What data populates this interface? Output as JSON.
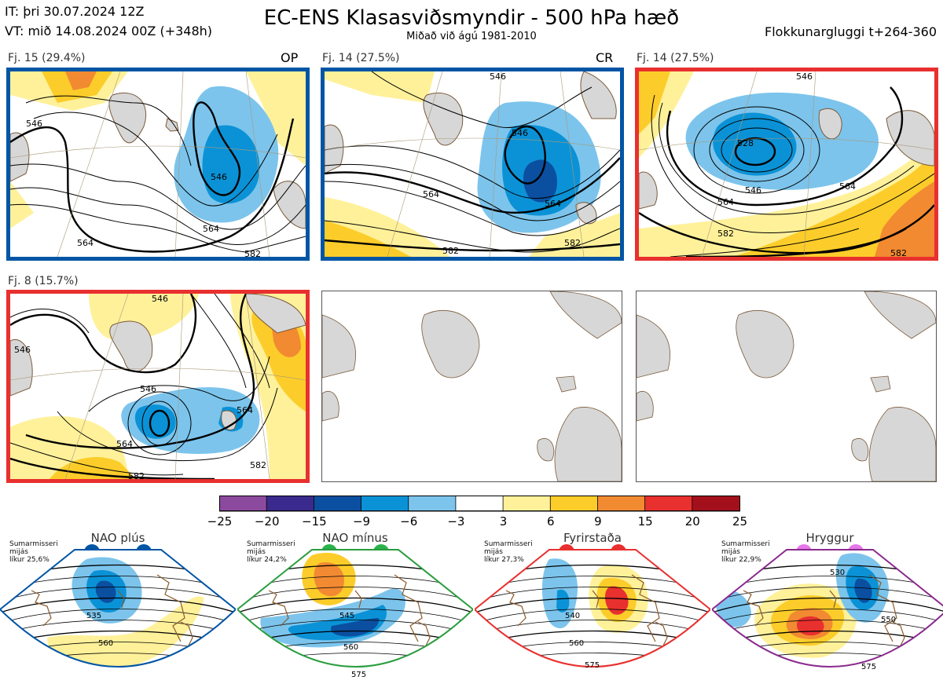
{
  "header": {
    "it": "IT: þri 30.07.2024 12Z",
    "vt": "VT: mið 14.08.2024 00Z  (+348h)",
    "title": "EC-ENS Klasasviðsmyndir - 500 hPa hæð",
    "subtitle": "Miðað við ágú 1981-2010",
    "window": "Flokkunargluggi t+264-360"
  },
  "panels": [
    {
      "label": "Fj. 15 (29.4%)",
      "tag": "OP",
      "frame": "#0055a4",
      "contours": [
        "546",
        "564",
        "564",
        "582",
        "546"
      ]
    },
    {
      "label": "Fj. 14 (27.5%)",
      "tag": "CR",
      "frame": "#0055a4",
      "contours": [
        "546",
        "546",
        "564",
        "564",
        "582",
        "582"
      ]
    },
    {
      "label": "Fj. 14 (27.5%)",
      "tag": "",
      "frame": "#e8302f",
      "contours": [
        "546",
        "528",
        "546",
        "564",
        "564",
        "582",
        "582"
      ]
    },
    {
      "label": "Fj. 8 (15.7%)",
      "tag": "",
      "frame": "#e8302f",
      "contours": [
        "546",
        "546",
        "564",
        "564",
        "582",
        "582",
        "546"
      ]
    }
  ],
  "colorbar": {
    "colors": [
      "#8c4a9e",
      "#3a2a8e",
      "#0b4fa0",
      "#0b92d6",
      "#7cc4ec",
      "#ffffff",
      "#fff19a",
      "#fccd2a",
      "#f28a32",
      "#e8302f",
      "#a3101c"
    ],
    "ticks": [
      "−25",
      "−20",
      "−15",
      "−9",
      "−6",
      "−3",
      "3",
      "6",
      "9",
      "15",
      "20",
      "25"
    ]
  },
  "regimes": [
    {
      "name": "NAO plús",
      "season": "Sumarmisseri",
      "avg": "mijás",
      "prob": "líkur 25,6%",
      "color": "#0055a4",
      "dot": "#0055a4",
      "contours": [
        "535",
        "560"
      ]
    },
    {
      "name": "NAO mínus",
      "season": "Sumarmisseri",
      "avg": "mijás",
      "prob": "líkur 24,2%",
      "color": "#2a9d3e",
      "dot": "#2bb24a",
      "contours": [
        "545",
        "560",
        "575"
      ]
    },
    {
      "name": "Fyrirstaða",
      "season": "Sumarmisseri",
      "avg": "mijás",
      "prob": "líkur 27,3%",
      "color": "#e8302f",
      "dot": "#e8302f",
      "contours": [
        "540",
        "560",
        "575"
      ]
    },
    {
      "name": "Hryggur",
      "season": "Sumarmisseri",
      "avg": "mijás",
      "prob": "líkur 22,9%",
      "color": "#8a2a8e",
      "dot": "#e577e8",
      "contours": [
        "530",
        "550",
        "575"
      ]
    }
  ]
}
